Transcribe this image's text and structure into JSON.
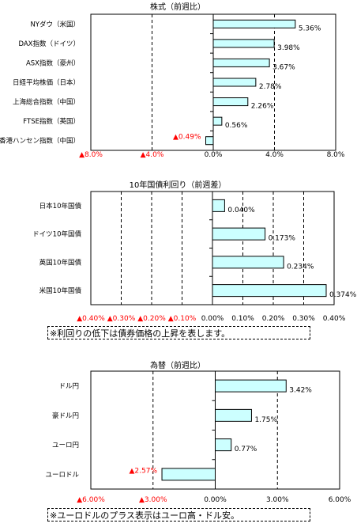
{
  "colors": {
    "bar_fill": "#ccffff",
    "bar_stroke": "#000000",
    "negative_text": "#ff0000",
    "text": "#000000"
  },
  "notes": {
    "bonds": "※利回りの低下は債券価格の上昇を表します。",
    "fx": "※ユーロドルのプラス表示はユーロ高・ドル安。"
  },
  "chart_data": [
    {
      "type": "bar",
      "orientation": "horizontal",
      "title": "株式（前週比）",
      "categories": [
        "NYダウ（米国）",
        "DAX指数（ドイツ）",
        "ASX指数（豪州）",
        "日経平均株価（日本）",
        "上海総合指数（中国）",
        "FTSE指数（英国）",
        "香港ハンセン指数（中国）"
      ],
      "values": [
        5.36,
        3.98,
        3.67,
        2.78,
        2.26,
        0.56,
        -0.49
      ],
      "value_labels": [
        "5.36%",
        "3.98%",
        "3.67%",
        "2.78%",
        "2.26%",
        "0.56%",
        "▲0.49%"
      ],
      "xlim": [
        -8,
        8
      ],
      "ticks": [
        -8,
        -4,
        0,
        4,
        8
      ],
      "tick_labels": [
        "▲8.0%",
        "▲4.0%",
        "0.0%",
        "4.0%",
        "8.0%"
      ],
      "grid": true
    },
    {
      "type": "bar",
      "orientation": "horizontal",
      "title": "10年国債利回り（前週差）",
      "categories": [
        "日本10年国債",
        "ドイツ10年国債",
        "英国10年国債",
        "米国10年国債"
      ],
      "values": [
        0.04,
        0.173,
        0.234,
        0.374
      ],
      "value_labels": [
        "0.040%",
        "0.173%",
        "0.234%",
        "0.374%"
      ],
      "xlim": [
        -0.4,
        0.4
      ],
      "ticks": [
        -0.4,
        -0.3,
        -0.2,
        -0.1,
        0,
        0.1,
        0.2,
        0.3,
        0.4
      ],
      "tick_labels": [
        "▲0.40%",
        "▲0.30%",
        "▲0.20%",
        "▲0.10%",
        "0.00%",
        "0.10%",
        "0.20%",
        "0.30%",
        "0.40%"
      ],
      "grid": true
    },
    {
      "type": "bar",
      "orientation": "horizontal",
      "title": "為替（前週比）",
      "categories": [
        "ドル円",
        "豪ドル円",
        "ユーロ円",
        "ユーロドル"
      ],
      "values": [
        3.42,
        1.75,
        0.77,
        -2.57
      ],
      "value_labels": [
        "3.42%",
        "1.75%",
        "0.77%",
        "▲2.57%"
      ],
      "xlim": [
        -6,
        6
      ],
      "ticks": [
        -6,
        -3,
        0,
        3,
        6
      ],
      "tick_labels": [
        "▲6.00%",
        "▲3.00%",
        "0.00%",
        "3.00%",
        "6.00%"
      ],
      "grid": true
    }
  ]
}
